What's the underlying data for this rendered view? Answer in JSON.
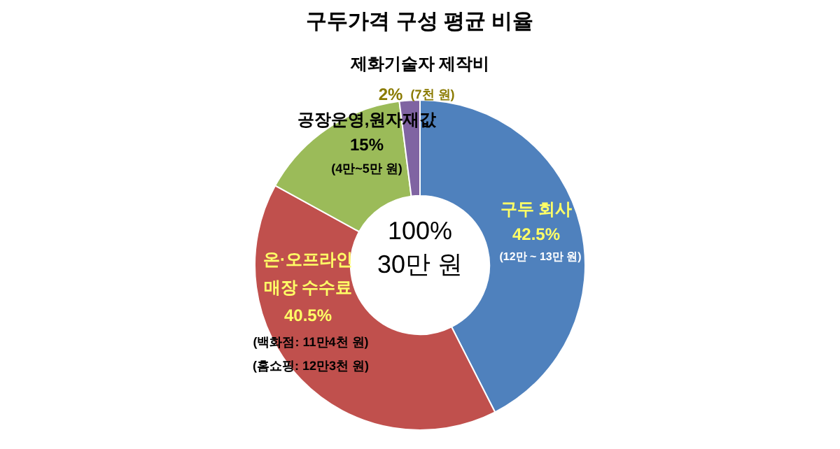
{
  "chart_data": {
    "type": "donut",
    "title": "구두가격 구성  평균 비율",
    "categories": [
      "구두 회사",
      "온·오프라인 매장 수수료",
      "공장운영,원자재값",
      "제화기술자 제작비"
    ],
    "values": [
      42.5,
      40.5,
      15,
      2
    ],
    "value_labels": [
      "42.5%",
      "40.5%",
      "15%",
      "2%"
    ],
    "colors": [
      "#4f81bd",
      "#c0504d",
      "#9bbb59",
      "#8064a2"
    ],
    "annotations": [
      "100%",
      "30만 원",
      "(12만 ~ 13만 원)",
      "(백화점: 11만4천 원)",
      "(홈쇼핑: 12만3천 원)",
      "(4만~5만 원)",
      "(7천 원)"
    ],
    "legend": false
  }
}
